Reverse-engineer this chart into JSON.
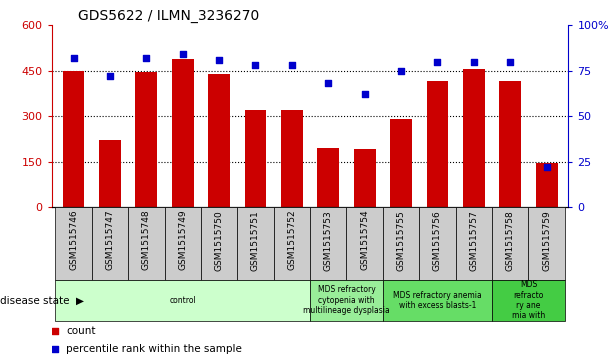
{
  "title": "GDS5622 / ILMN_3236270",
  "samples": [
    "GSM1515746",
    "GSM1515747",
    "GSM1515748",
    "GSM1515749",
    "GSM1515750",
    "GSM1515751",
    "GSM1515752",
    "GSM1515753",
    "GSM1515754",
    "GSM1515755",
    "GSM1515756",
    "GSM1515757",
    "GSM1515758",
    "GSM1515759"
  ],
  "counts": [
    450,
    220,
    445,
    490,
    440,
    320,
    320,
    195,
    190,
    290,
    415,
    455,
    415,
    145
  ],
  "percentiles": [
    82,
    72,
    82,
    84,
    81,
    78,
    78,
    68,
    62,
    75,
    80,
    80,
    80,
    22
  ],
  "bar_color": "#cc0000",
  "dot_color": "#0000cc",
  "left_ylim": [
    0,
    600
  ],
  "right_ylim": [
    0,
    100
  ],
  "left_yticks": [
    0,
    150,
    300,
    450,
    600
  ],
  "right_yticks": [
    0,
    25,
    50,
    75,
    100
  ],
  "right_yticklabels": [
    "0",
    "25",
    "50",
    "75",
    "100%"
  ],
  "grid_lines": [
    150,
    300,
    450
  ],
  "disease_groups": [
    {
      "label": "control",
      "start": 0,
      "end": 7,
      "color": "#ccffcc"
    },
    {
      "label": "MDS refractory\ncytopenia with\nmultilineage dysplasia",
      "start": 7,
      "end": 9,
      "color": "#99ee99"
    },
    {
      "label": "MDS refractory anemia\nwith excess blasts-1",
      "start": 9,
      "end": 12,
      "color": "#66dd66"
    },
    {
      "label": "MDS\nrefracto\nry ane\nmia with",
      "start": 12,
      "end": 14,
      "color": "#44cc44"
    }
  ],
  "disease_state_label": "disease state",
  "legend_count_label": "count",
  "legend_pct_label": "percentile rank within the sample",
  "xtick_bg_color": "#cccccc",
  "plot_bg_color": "#ffffff",
  "fig_bg_color": "#ffffff"
}
